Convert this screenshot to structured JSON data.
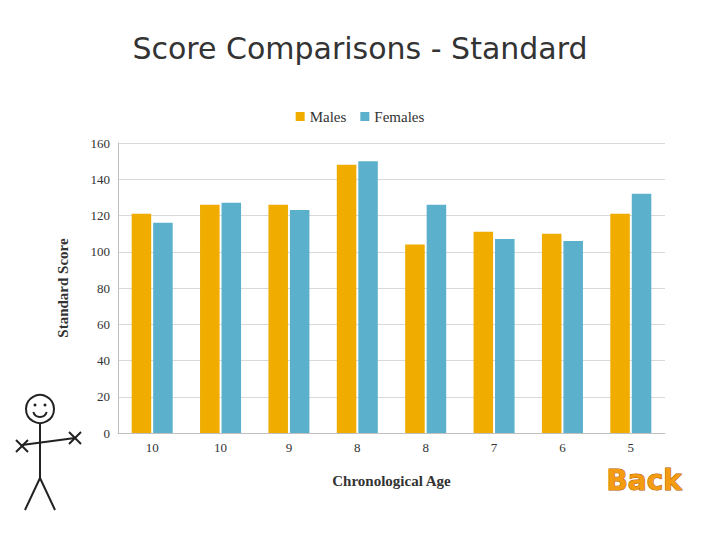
{
  "chart_data": {
    "type": "bar",
    "title": "Score Comparisons - Standard",
    "x_label": "Chronological Age",
    "y_label": "Standard Score",
    "annotation": "Back",
    "categories": [
      "10",
      "10",
      "9",
      "8",
      "8",
      "7",
      "6",
      "5"
    ],
    "series": [
      {
        "name": "Males",
        "color": "#f0ad00",
        "values": [
          121,
          126,
          126,
          148,
          104,
          111,
          110,
          121
        ]
      },
      {
        "name": "Females",
        "color": "#5bb1cb",
        "values": [
          116,
          127,
          123,
          150,
          126,
          107,
          106,
          132
        ]
      }
    ],
    "ylim": [
      0,
      160
    ],
    "yticks": [
      0,
      20,
      40,
      60,
      80,
      100,
      120,
      140,
      160
    ],
    "grid": true,
    "legend": "top"
  }
}
